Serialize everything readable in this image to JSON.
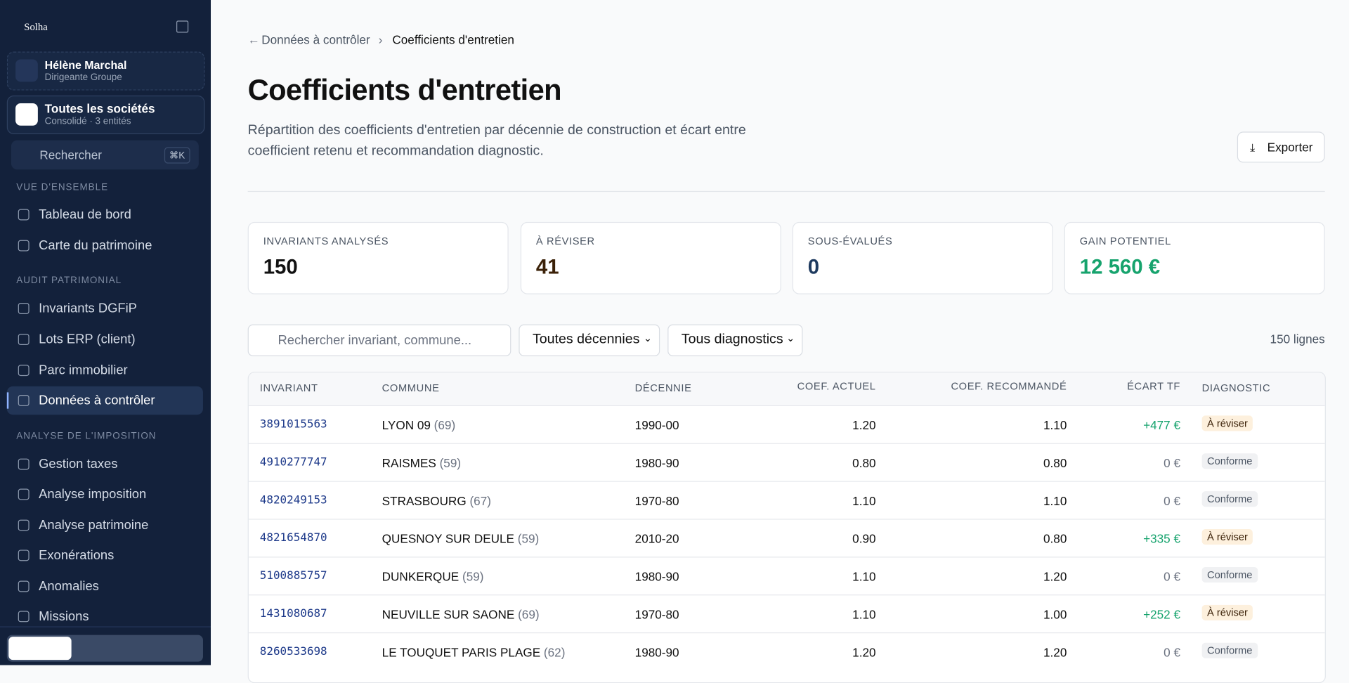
{
  "sidebar": {
    "brand": "Solha",
    "user": {
      "name": "Hélène Marchal",
      "role": "Dirigeante Groupe"
    },
    "org": {
      "name": "Toutes les sociétés",
      "sub": "Consolidé · 3 entités"
    },
    "search": {
      "placeholder": "Rechercher",
      "shortcut": "⌘K"
    },
    "sections": [
      {
        "title": "VUE D'ENSEMBLE",
        "items": [
          "Tableau de bord",
          "Carte du patrimoine"
        ]
      },
      {
        "title": "AUDIT PATRIMONIAL",
        "items": [
          "Invariants DGFiP",
          "Lots ERP (client)",
          "Parc immobilier",
          "Données à contrôler"
        ]
      },
      {
        "title": "ANALYSE DE L'IMPOSITION",
        "items": [
          "Gestion taxes",
          "Analyse imposition",
          "Analyse patrimoine",
          "Exonérations",
          "Anomalies",
          "Missions"
        ]
      }
    ]
  },
  "header": {
    "breadcrumb": {
      "back": "Données à contrôler",
      "current": "Coefficients d'entretien"
    },
    "title": "Coefficients d'entretien",
    "description": "Répartition des coefficients d'entretien par décennie de construction et écart entre coefficient retenu et recommandation diagnostic.",
    "export": "Exporter"
  },
  "stats": [
    {
      "label": "INVARIANTS ANALYSÉS",
      "value": "150"
    },
    {
      "label": "À RÉVISER",
      "value": "41"
    },
    {
      "label": "SOUS-ÉVALUÉS",
      "value": "0"
    },
    {
      "label": "GAIN POTENTIEL",
      "value": "12 560 €"
    }
  ],
  "filters": {
    "search": "Rechercher invariant, commune...",
    "decade": "Toutes décennies",
    "diagnostic": "Tous diagnostics",
    "count": "150 lignes"
  },
  "table": {
    "columns": [
      "INVARIANT",
      "COMMUNE",
      "DÉCENNIE",
      "COEF. ACTUEL",
      "COEF. RECOMMANDÉ",
      "ÉCART TF",
      "DIAGNOSTIC"
    ],
    "rows": [
      [
        "3891015563",
        "LYON 09",
        "(69)",
        "1990-00",
        "1.20",
        "1.10",
        "+477 €",
        "À réviser"
      ],
      [
        "4910277747",
        "RAISMES",
        "(59)",
        "1980-90",
        "0.80",
        "0.80",
        "0 €",
        "Conforme"
      ],
      [
        "4820249153",
        "STRASBOURG",
        "(67)",
        "1970-80",
        "1.10",
        "1.10",
        "0 €",
        "Conforme"
      ],
      [
        "4821654870",
        "QUESNOY SUR DEULE",
        "(59)",
        "2010-20",
        "0.90",
        "0.80",
        "+335 €",
        "À réviser"
      ],
      [
        "5100885757",
        "DUNKERQUE",
        "(59)",
        "1980-90",
        "1.10",
        "1.20",
        "0 €",
        "Conforme"
      ],
      [
        "1431080687",
        "NEUVILLE SUR SAONE",
        "(69)",
        "1970-80",
        "1.10",
        "1.00",
        "+252 €",
        "À réviser"
      ],
      [
        "8260533698",
        "LE TOUQUET PARIS PLAGE",
        "(62)",
        "1980-90",
        "1.20",
        "1.20",
        "0 €",
        "Conforme"
      ]
    ]
  }
}
